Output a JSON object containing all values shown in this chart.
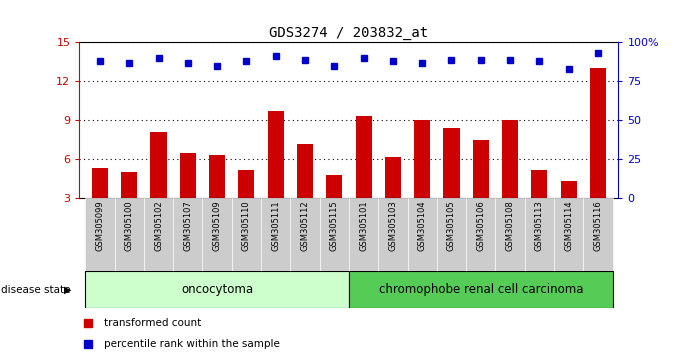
{
  "title": "GDS3274 / 203832_at",
  "samples": [
    "GSM305099",
    "GSM305100",
    "GSM305102",
    "GSM305107",
    "GSM305109",
    "GSM305110",
    "GSM305111",
    "GSM305112",
    "GSM305115",
    "GSM305101",
    "GSM305103",
    "GSM305104",
    "GSM305105",
    "GSM305106",
    "GSM305108",
    "GSM305113",
    "GSM305114",
    "GSM305116"
  ],
  "red_values": [
    5.3,
    5.0,
    8.1,
    6.5,
    6.3,
    5.2,
    9.7,
    7.2,
    4.8,
    9.3,
    6.2,
    9.0,
    8.4,
    7.5,
    9.0,
    5.2,
    4.3,
    13.0
  ],
  "blue_percentiles": [
    88,
    87,
    90,
    87,
    85,
    88,
    91,
    89,
    85,
    90,
    88,
    87,
    89,
    89,
    89,
    88,
    83,
    93
  ],
  "ylim_left": [
    3,
    15
  ],
  "ylim_right": [
    0,
    100
  ],
  "yticks_left": [
    3,
    6,
    9,
    12,
    15
  ],
  "yticks_right": [
    0,
    25,
    50,
    75,
    100
  ],
  "ytick_labels_right": [
    "0",
    "25",
    "50",
    "75",
    "100%"
  ],
  "oncocytoma_count": 9,
  "chromophobe_count": 9,
  "group1_label": "oncocytoma",
  "group2_label": "chromophobe renal cell carcinoma",
  "disease_state_label": "disease state",
  "legend_red": "transformed count",
  "legend_blue": "percentile rank within the sample",
  "bar_color": "#CC0000",
  "dot_color": "#0000CC",
  "group1_bg": "#CCFFCC",
  "group2_bg": "#55CC55",
  "left_axis_color": "#CC0000",
  "right_axis_color": "#0000CC",
  "tick_label_bg": "#CCCCCC"
}
